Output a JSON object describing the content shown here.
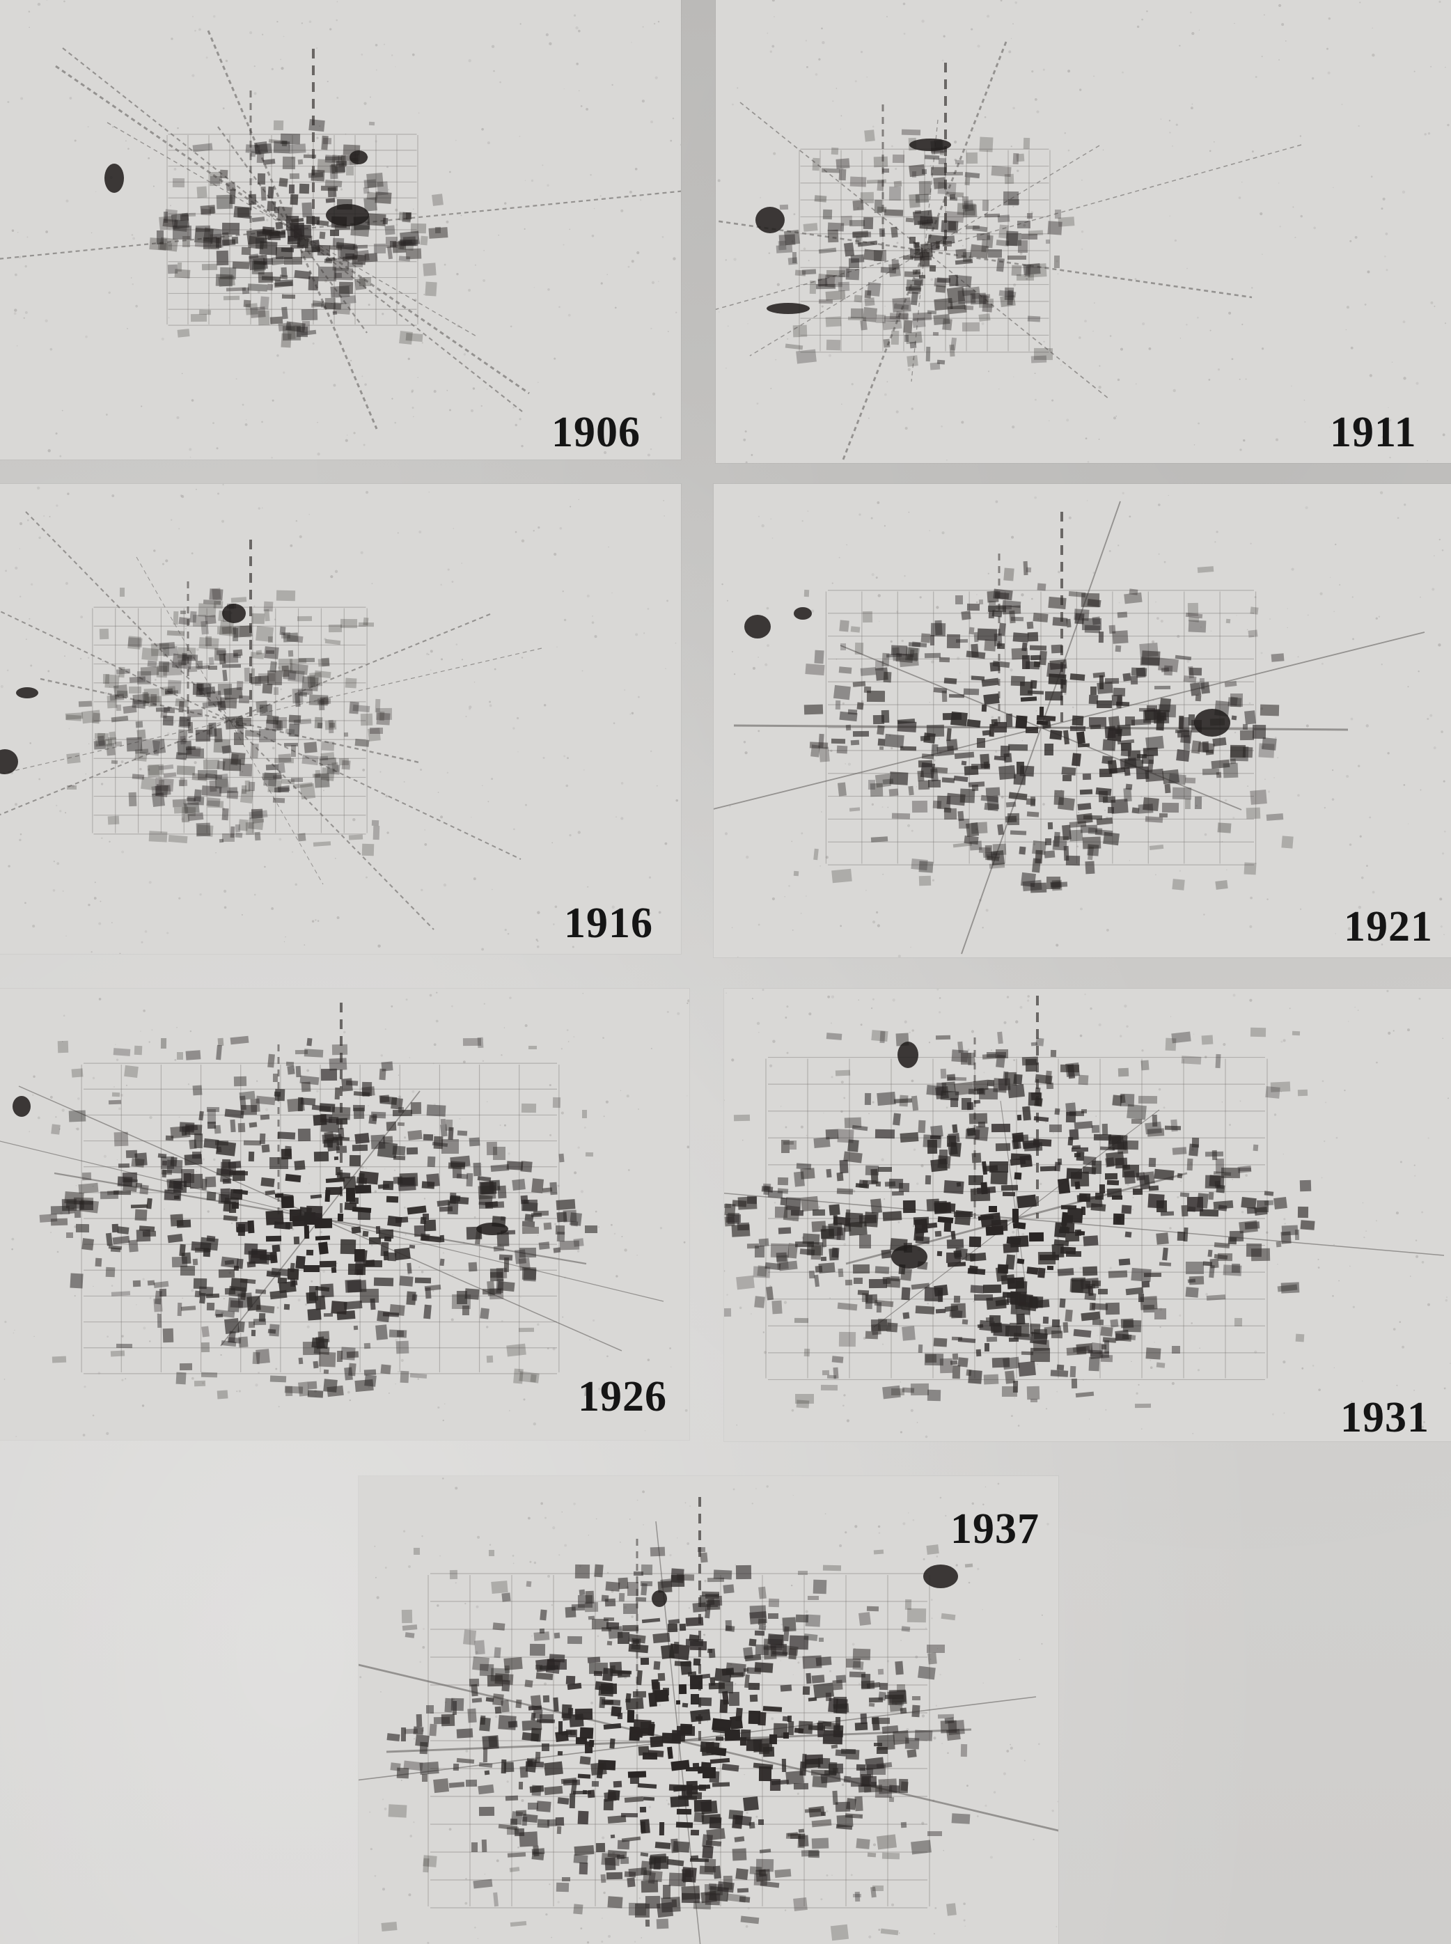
{
  "maps": [
    {
      "id": "m1906",
      "year": "1906"
    },
    {
      "id": "m1911",
      "year": "1911"
    },
    {
      "id": "m1916",
      "year": "1916"
    },
    {
      "id": "m1921",
      "year": "1921"
    },
    {
      "id": "m1926",
      "year": "1926"
    },
    {
      "id": "m1931",
      "year": "1931"
    },
    {
      "id": "m1937",
      "year": "1937"
    }
  ],
  "colors": {
    "paper": "#d9d8d6",
    "ink": "#2a2625",
    "ink_light": "#6c6866",
    "page": "#c9c8c6"
  }
}
